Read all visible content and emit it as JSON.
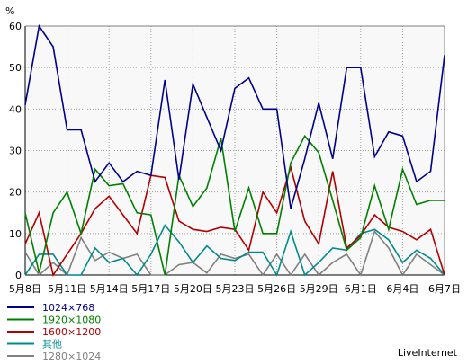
{
  "chart_data": {
    "type": "line",
    "ylabel": "%",
    "ylim": [
      0,
      60
    ],
    "yticks": [
      0,
      10,
      20,
      30,
      40,
      50,
      60
    ],
    "grid": true,
    "legend_position": "bottom-left",
    "x_tick_labels": [
      "5月8日",
      "5月11日",
      "5月14日",
      "5月17日",
      "5月20日",
      "5月23日",
      "5月26日",
      "5月29日",
      "6月1日",
      "6月4日",
      "6月7日"
    ],
    "x_tick_indices": [
      0,
      3,
      6,
      9,
      12,
      15,
      18,
      21,
      24,
      27,
      30
    ],
    "points_per_series": 31,
    "series": [
      {
        "name": "1024×768",
        "color": "#00008b",
        "values": [
          41,
          60,
          55,
          35,
          35,
          22.5,
          27,
          22.5,
          25,
          24,
          47,
          23,
          46,
          38,
          30,
          45,
          47.5,
          40,
          40,
          16,
          28,
          41.5,
          28,
          50,
          50,
          28.5,
          34.5,
          33.5,
          22.5,
          25,
          53
        ]
      },
      {
        "name": "1920×1080",
        "color": "#008000",
        "values": [
          15,
          0.5,
          15,
          20,
          10,
          25.5,
          21.5,
          22,
          15,
          14.5,
          0,
          24,
          16.5,
          21,
          33,
          10.5,
          21,
          10,
          10,
          27,
          33.5,
          29.5,
          18,
          6,
          9,
          21.5,
          11,
          25.5,
          17,
          18,
          18
        ]
      },
      {
        "name": "1600×1200",
        "color": "#b00000",
        "values": [
          7.5,
          15,
          0,
          5,
          10,
          16,
          19,
          14.5,
          10,
          24,
          23.5,
          13,
          11,
          10.5,
          11.5,
          11,
          6,
          20,
          15,
          26,
          13,
          7.5,
          25,
          6.5,
          9.5,
          14.5,
          11.5,
          10.5,
          8.5,
          11,
          0
        ]
      },
      {
        "name": "其他",
        "color": "#008b8b",
        "values": [
          0,
          5,
          5,
          0,
          0,
          6.5,
          3,
          4,
          0,
          5,
          12,
          8,
          3,
          7,
          4,
          3.5,
          5.5,
          5.5,
          0,
          10.5,
          0,
          3,
          6.5,
          6,
          10,
          11,
          8.5,
          3,
          6,
          4,
          0
        ]
      },
      {
        "name": "1280×1024",
        "color": "#808080",
        "values": [
          5.5,
          0,
          3,
          0,
          9,
          3.5,
          5.5,
          4,
          5,
          0,
          0,
          2.5,
          3,
          0.5,
          5,
          4,
          5,
          0,
          5,
          0,
          5,
          0,
          3,
          5,
          0,
          10.5,
          6.5,
          0,
          5,
          2.5,
          0
        ]
      }
    ]
  },
  "brand": "LiveInternet"
}
